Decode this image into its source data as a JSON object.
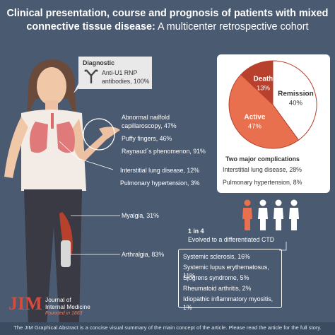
{
  "title": {
    "line1": "Clinical presentation, course and prognosis of patients with mixed",
    "line2_bold": "connective tissue disease:",
    "line2_rest": " A multicenter retrospective cohort"
  },
  "diagnostic": {
    "heading": "Diagnostic",
    "line1": "Anti-U1 RNP",
    "line2": "antibodies, 100%",
    "icon": "antibody-icon"
  },
  "hands": {
    "line1": "Abnormal nailfold",
    "line2": "capillaroscopy, 47%",
    "line3": "Puffy fingers, 46%",
    "line4": "Raynaud´s phenomenon, 91%"
  },
  "lungs": {
    "line1": "Interstitial lung disease, 12%",
    "line2": "Pulmonary hypertension, 3%"
  },
  "myalgia": "Myalgia, 31%",
  "arthralgia": "Arthralgia, 83%",
  "course_chart": {
    "type": "pie",
    "slices": [
      {
        "label": "Remission",
        "value": 40,
        "display": "40%",
        "color": "#ffffff"
      },
      {
        "label": "Active",
        "value": 47,
        "display": "47%",
        "color": "#e8704f"
      },
      {
        "label": "Death",
        "value": 13,
        "display": "13%",
        "color": "#b8412d"
      }
    ]
  },
  "complications": {
    "heading": "Two major complications",
    "line1": "Interstitial lung disease, 28%",
    "line2": "Pulmonary hypertension, 8%"
  },
  "evolved": {
    "ratio": "1 in 4",
    "text": "Evolved to a differentiated CTD",
    "people_total": 4,
    "people_highlighted": 1,
    "highlight_color": "#e8704f"
  },
  "ctd_list": [
    "Systemic sclerosis, 16%",
    "Systemic lupus erythematosus, 11%",
    "Sjögrens syndrome, 5%",
    "Rheumatoid arthritis, 2%",
    "Idiopathic inflammatory myositis, 1%"
  ],
  "journal": {
    "logo": "JIM",
    "name1": "Journal of",
    "name2": "Internal Medicine",
    "founded": "Founded in 1863"
  },
  "footer": "The JIM Graphical Abstract is a concise visual summary of the main concept of the article. Please read the article for the full story.",
  "colors": {
    "background": "#4a5a70",
    "accent": "#e8704f",
    "dark_accent": "#b8412d"
  }
}
